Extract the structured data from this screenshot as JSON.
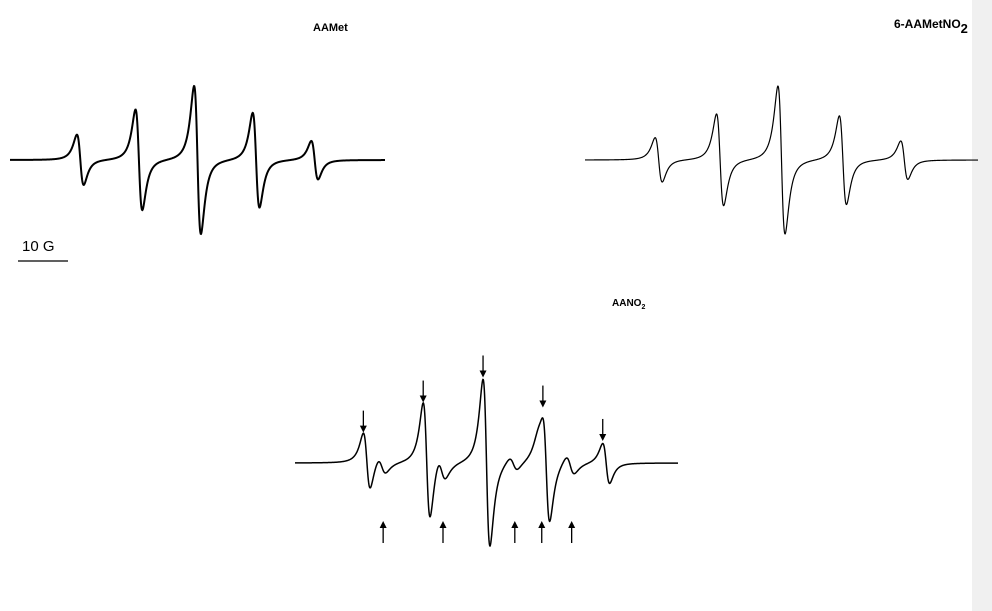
{
  "chart_data": [
    {
      "type": "line",
      "label": "AAMet",
      "x_range": [
        -32,
        32
      ],
      "line_positions": [
        -20,
        -10,
        0,
        10,
        20
      ],
      "relative_amplitudes": [
        0.34,
        0.68,
        1.0,
        0.64,
        0.26
      ],
      "linewidth_G": 1.0,
      "color": "#000000"
    },
    {
      "type": "line",
      "label_main": "6-AAMetNO",
      "label_sub": "2",
      "x_range": [
        -32,
        32
      ],
      "line_positions": [
        -20,
        -10,
        0,
        10,
        20
      ],
      "relative_amplitudes": [
        0.3,
        0.62,
        1.0,
        0.6,
        0.26
      ],
      "linewidth_G": 1.0,
      "color": "#000000"
    },
    {
      "type": "line",
      "label_main": "AANO",
      "label_sub": "2",
      "x_range": [
        -32,
        32
      ],
      "line_positions": [
        -20,
        -10,
        0,
        10,
        20
      ],
      "relative_amplitudes": [
        0.34,
        0.7,
        1.0,
        0.64,
        0.24
      ],
      "secondary_line_positions": [
        -17.5,
        -7.5,
        4.5,
        9,
        14
      ],
      "secondary_relative_amplitudes": [
        0.1,
        0.14,
        0.08,
        0.12,
        0.11
      ],
      "down_arrows_at": [
        -20,
        -10,
        0,
        10,
        20
      ],
      "up_arrows_at": [
        -17.5,
        -7.5,
        4.5,
        9,
        14
      ],
      "linewidth_G": 1.0,
      "color": "#000000"
    }
  ],
  "scale_bar": {
    "label": "10 G",
    "length_G": 10
  }
}
